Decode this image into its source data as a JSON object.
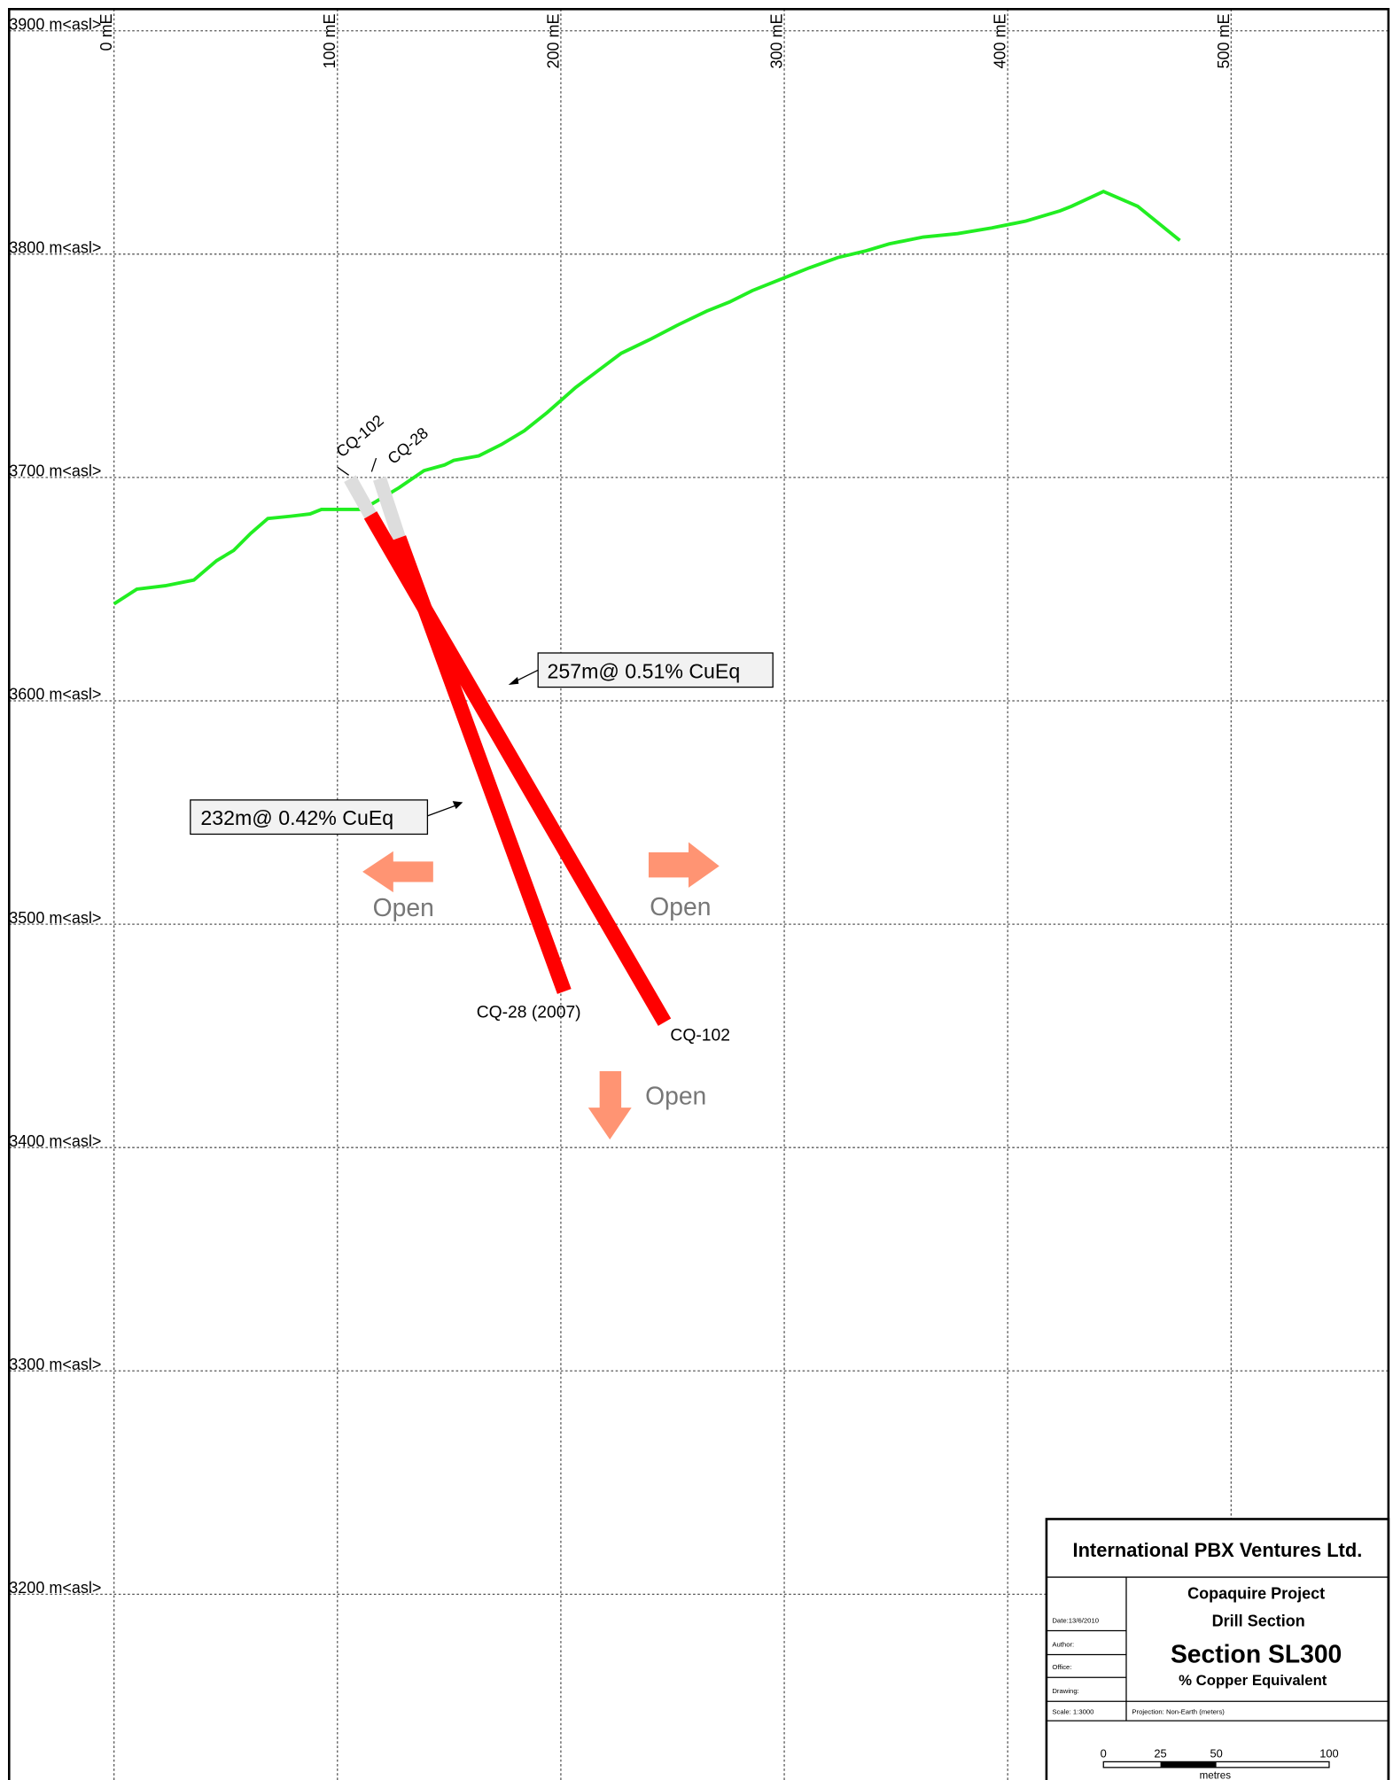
{
  "axes": {
    "elevation_labels": [
      "3900 m<asl>",
      "3800 m<asl>",
      "3700 m<asl>",
      "3600 m<asl>",
      "3500 m<asl>",
      "3400 m<asl>",
      "3300 m<asl>",
      "3200 m<asl>"
    ],
    "easting_labels": [
      "0 mE",
      "100 mE",
      "200 mE",
      "300 mE",
      "400 mE",
      "500 mE"
    ]
  },
  "drill_holes": [
    {
      "collar_label": "CQ-102",
      "end_label": "CQ-102"
    },
    {
      "collar_label": "CQ-28",
      "end_label": "CQ-28 (2007)"
    }
  ],
  "annotations": [
    "257m@ 0.51% CuEq",
    "232m@ 0.42% CuEq"
  ],
  "open_labels": [
    "Open",
    "Open",
    "Open"
  ],
  "title_block": {
    "company": "International PBX Ventures Ltd.",
    "project": "Copaquire Project",
    "subtitle": "Drill Section",
    "section": "Section SL300",
    "description": "% Copper Equivalent",
    "date": "Date:13/6/2010",
    "author": "Author:",
    "office": "Office:",
    "drawing": "Drawing:",
    "scale": "Scale: 1:3000",
    "projection": "Projection: Non-Earth (meters)",
    "scale_bar_labels": [
      "0",
      "25",
      "50",
      "100"
    ],
    "scale_bar_unit": "metres"
  }
}
